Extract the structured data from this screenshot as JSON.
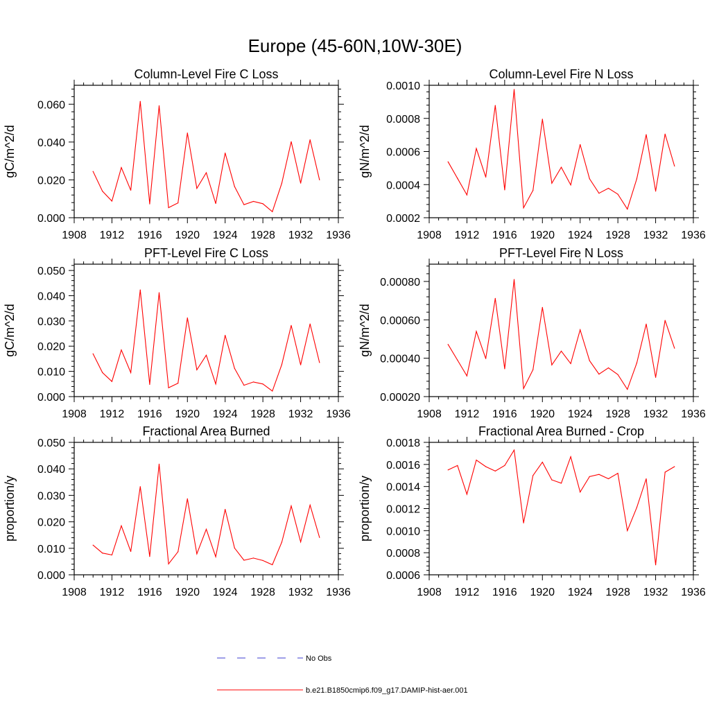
{
  "title": "Europe (45-60N,10W-30E)",
  "chart_data": [
    {
      "type": "line",
      "title": "Column-Level Fire C Loss",
      "ylabel": "gC/m^2/d",
      "xlim": [
        1908,
        1936
      ],
      "ylim": [
        0.0,
        0.07
      ],
      "xticks": [
        1908,
        1912,
        1916,
        1920,
        1924,
        1928,
        1932,
        1936
      ],
      "xtick_labels": [
        "1908",
        "1912",
        "1916",
        "1920",
        "1924",
        "1928",
        "1932",
        "1936"
      ],
      "yticks": [
        0.0,
        0.02,
        0.04,
        0.06
      ],
      "ytick_labels": [
        "0.000",
        "0.020",
        "0.040",
        "0.060"
      ],
      "x": [
        1910,
        1911,
        1912,
        1913,
        1914,
        1915,
        1916,
        1917,
        1918,
        1919,
        1920,
        1921,
        1922,
        1923,
        1924,
        1925,
        1926,
        1927,
        1928,
        1929,
        1930,
        1931,
        1932,
        1933,
        1934
      ],
      "series": [
        {
          "values": [
            0.0245,
            0.014,
            0.0088,
            0.0265,
            0.0145,
            0.0615,
            0.0073,
            0.0592,
            0.0053,
            0.0078,
            0.0448,
            0.0155,
            0.0238,
            0.0075,
            0.0342,
            0.0165,
            0.0069,
            0.0086,
            0.0074,
            0.0032,
            0.0182,
            0.0402,
            0.0183,
            0.0412,
            0.02
          ],
          "color": "#ff0000"
        }
      ]
    },
    {
      "type": "line",
      "title": "Column-Level Fire N Loss",
      "ylabel": "gN/m^2/d",
      "xlim": [
        1908,
        1936
      ],
      "ylim": [
        0.0002,
        0.001
      ],
      "xticks": [
        1908,
        1912,
        1916,
        1920,
        1924,
        1928,
        1932,
        1936
      ],
      "xtick_labels": [
        "1908",
        "1912",
        "1916",
        "1920",
        "1924",
        "1928",
        "1932",
        "1936"
      ],
      "yticks": [
        0.0002,
        0.0004,
        0.0006,
        0.0008,
        0.001
      ],
      "ytick_labels": [
        "0.0002",
        "0.0004",
        "0.0006",
        "0.0008",
        "0.0010"
      ],
      "x": [
        1910,
        1911,
        1912,
        1913,
        1914,
        1915,
        1916,
        1917,
        1918,
        1919,
        1920,
        1921,
        1922,
        1923,
        1924,
        1925,
        1926,
        1927,
        1928,
        1929,
        1930,
        1931,
        1932,
        1933,
        1934
      ],
      "series": [
        {
          "values": [
            0.000538,
            0.000438,
            0.000338,
            0.000618,
            0.000445,
            0.000878,
            0.000368,
            0.000975,
            0.00026,
            0.000365,
            0.000795,
            0.000408,
            0.000505,
            0.000398,
            0.000642,
            0.000435,
            0.000348,
            0.000378,
            0.000342,
            0.000252,
            0.000435,
            0.000702,
            0.00036,
            0.000705,
            0.000512
          ],
          "color": "#ff0000"
        }
      ]
    },
    {
      "type": "line",
      "title": "PFT-Level Fire C Loss",
      "ylabel": "gC/m^2/d",
      "xlim": [
        1908,
        1936
      ],
      "ylim": [
        0.0,
        0.0525
      ],
      "xticks": [
        1908,
        1912,
        1916,
        1920,
        1924,
        1928,
        1932,
        1936
      ],
      "xtick_labels": [
        "1908",
        "1912",
        "1916",
        "1920",
        "1924",
        "1928",
        "1932",
        "1936"
      ],
      "yticks": [
        0.0,
        0.01,
        0.02,
        0.03,
        0.04,
        0.05
      ],
      "ytick_labels": [
        "0.000",
        "0.010",
        "0.020",
        "0.030",
        "0.040",
        "0.050"
      ],
      "x": [
        1910,
        1911,
        1912,
        1913,
        1914,
        1915,
        1916,
        1917,
        1918,
        1919,
        1920,
        1921,
        1922,
        1923,
        1924,
        1925,
        1926,
        1927,
        1928,
        1929,
        1930,
        1931,
        1932,
        1933,
        1934
      ],
      "series": [
        {
          "values": [
            0.017,
            0.0095,
            0.006,
            0.0185,
            0.0095,
            0.0423,
            0.0048,
            0.0412,
            0.0035,
            0.0053,
            0.0312,
            0.0106,
            0.0164,
            0.005,
            0.0243,
            0.0112,
            0.0045,
            0.0058,
            0.005,
            0.0022,
            0.0127,
            0.0282,
            0.0126,
            0.0288,
            0.0135
          ],
          "color": "#ff0000"
        }
      ]
    },
    {
      "type": "line",
      "title": "PFT-Level Fire N Loss",
      "ylabel": "gN/m^2/d",
      "xlim": [
        1908,
        1936
      ],
      "ylim": [
        0.0002,
        0.00089
      ],
      "xticks": [
        1908,
        1912,
        1916,
        1920,
        1924,
        1928,
        1932,
        1936
      ],
      "xtick_labels": [
        "1908",
        "1912",
        "1916",
        "1920",
        "1924",
        "1928",
        "1932",
        "1936"
      ],
      "yticks": [
        0.0002,
        0.0004,
        0.0006,
        0.0008
      ],
      "ytick_labels": [
        "0.00020",
        "0.00040",
        "0.00060",
        "0.00080"
      ],
      "x": [
        1910,
        1911,
        1912,
        1913,
        1914,
        1915,
        1916,
        1917,
        1918,
        1919,
        1920,
        1921,
        1922,
        1923,
        1924,
        1925,
        1926,
        1927,
        1928,
        1929,
        1930,
        1931,
        1932,
        1933,
        1934
      ],
      "series": [
        {
          "values": [
            0.000472,
            0.00039,
            0.000308,
            0.00054,
            0.000398,
            0.000712,
            0.000345,
            0.00081,
            0.000242,
            0.00034,
            0.000665,
            0.000365,
            0.000437,
            0.000372,
            0.000548,
            0.000387,
            0.000317,
            0.00035,
            0.000315,
            0.000238,
            0.000375,
            0.000578,
            0.0003,
            0.000597,
            0.000452
          ],
          "color": "#ff0000"
        }
      ]
    },
    {
      "type": "line",
      "title": "Fractional Area Burned",
      "ylabel": "proportion/y",
      "xlim": [
        1908,
        1936
      ],
      "ylim": [
        0.0,
        0.05
      ],
      "xticks": [
        1908,
        1912,
        1916,
        1920,
        1924,
        1928,
        1932,
        1936
      ],
      "xtick_labels": [
        "1908",
        "1912",
        "1916",
        "1920",
        "1924",
        "1928",
        "1932",
        "1936"
      ],
      "yticks": [
        0.0,
        0.01,
        0.02,
        0.03,
        0.04,
        0.05
      ],
      "ytick_labels": [
        "0.000",
        "0.010",
        "0.020",
        "0.030",
        "0.040",
        "0.050"
      ],
      "x": [
        1910,
        1911,
        1912,
        1913,
        1914,
        1915,
        1916,
        1917,
        1918,
        1919,
        1920,
        1921,
        1922,
        1923,
        1924,
        1925,
        1926,
        1927,
        1928,
        1929,
        1930,
        1931,
        1932,
        1933,
        1934
      ],
      "series": [
        {
          "values": [
            0.0112,
            0.0082,
            0.0075,
            0.0185,
            0.0088,
            0.0333,
            0.0069,
            0.0418,
            0.0041,
            0.0087,
            0.0287,
            0.0079,
            0.0172,
            0.0068,
            0.0247,
            0.0101,
            0.0055,
            0.0063,
            0.0054,
            0.0038,
            0.0123,
            0.026,
            0.0124,
            0.0263,
            0.0141
          ],
          "color": "#ff0000"
        }
      ]
    },
    {
      "type": "line",
      "title": "Fractional Area Burned - Crop",
      "ylabel": "proportion/y",
      "xlim": [
        1908,
        1936
      ],
      "ylim": [
        0.0006,
        0.0018
      ],
      "xticks": [
        1908,
        1912,
        1916,
        1920,
        1924,
        1928,
        1932,
        1936
      ],
      "xtick_labels": [
        "1908",
        "1912",
        "1916",
        "1920",
        "1924",
        "1928",
        "1932",
        "1936"
      ],
      "yticks": [
        0.0006,
        0.0008,
        0.001,
        0.0012,
        0.0014,
        0.0016,
        0.0018
      ],
      "ytick_labels": [
        "0.0006",
        "0.0008",
        "0.0010",
        "0.0012",
        "0.0014",
        "0.0016",
        "0.0018"
      ],
      "x": [
        1910,
        1911,
        1912,
        1913,
        1914,
        1915,
        1916,
        1917,
        1918,
        1919,
        1920,
        1921,
        1922,
        1923,
        1924,
        1925,
        1926,
        1927,
        1928,
        1929,
        1930,
        1931,
        1932,
        1933,
        1934
      ],
      "series": [
        {
          "values": [
            0.00155,
            0.00159,
            0.00133,
            0.00164,
            0.00158,
            0.00154,
            0.00159,
            0.00173,
            0.00107,
            0.0015,
            0.00162,
            0.00146,
            0.00143,
            0.00167,
            0.00135,
            0.00149,
            0.00151,
            0.00147,
            0.00152,
            0.001,
            0.00121,
            0.00147,
            0.00069,
            0.00153,
            0.00158
          ],
          "color": "#ff0000"
        }
      ]
    }
  ],
  "legend": [
    {
      "label": "No Obs",
      "color": "#3c3cd0",
      "style": "dashed"
    },
    {
      "label": "b.e21.B1850cmip6.f09_g17.DAMIP-hist-aer.001",
      "color": "#ff0000",
      "style": "solid"
    }
  ]
}
